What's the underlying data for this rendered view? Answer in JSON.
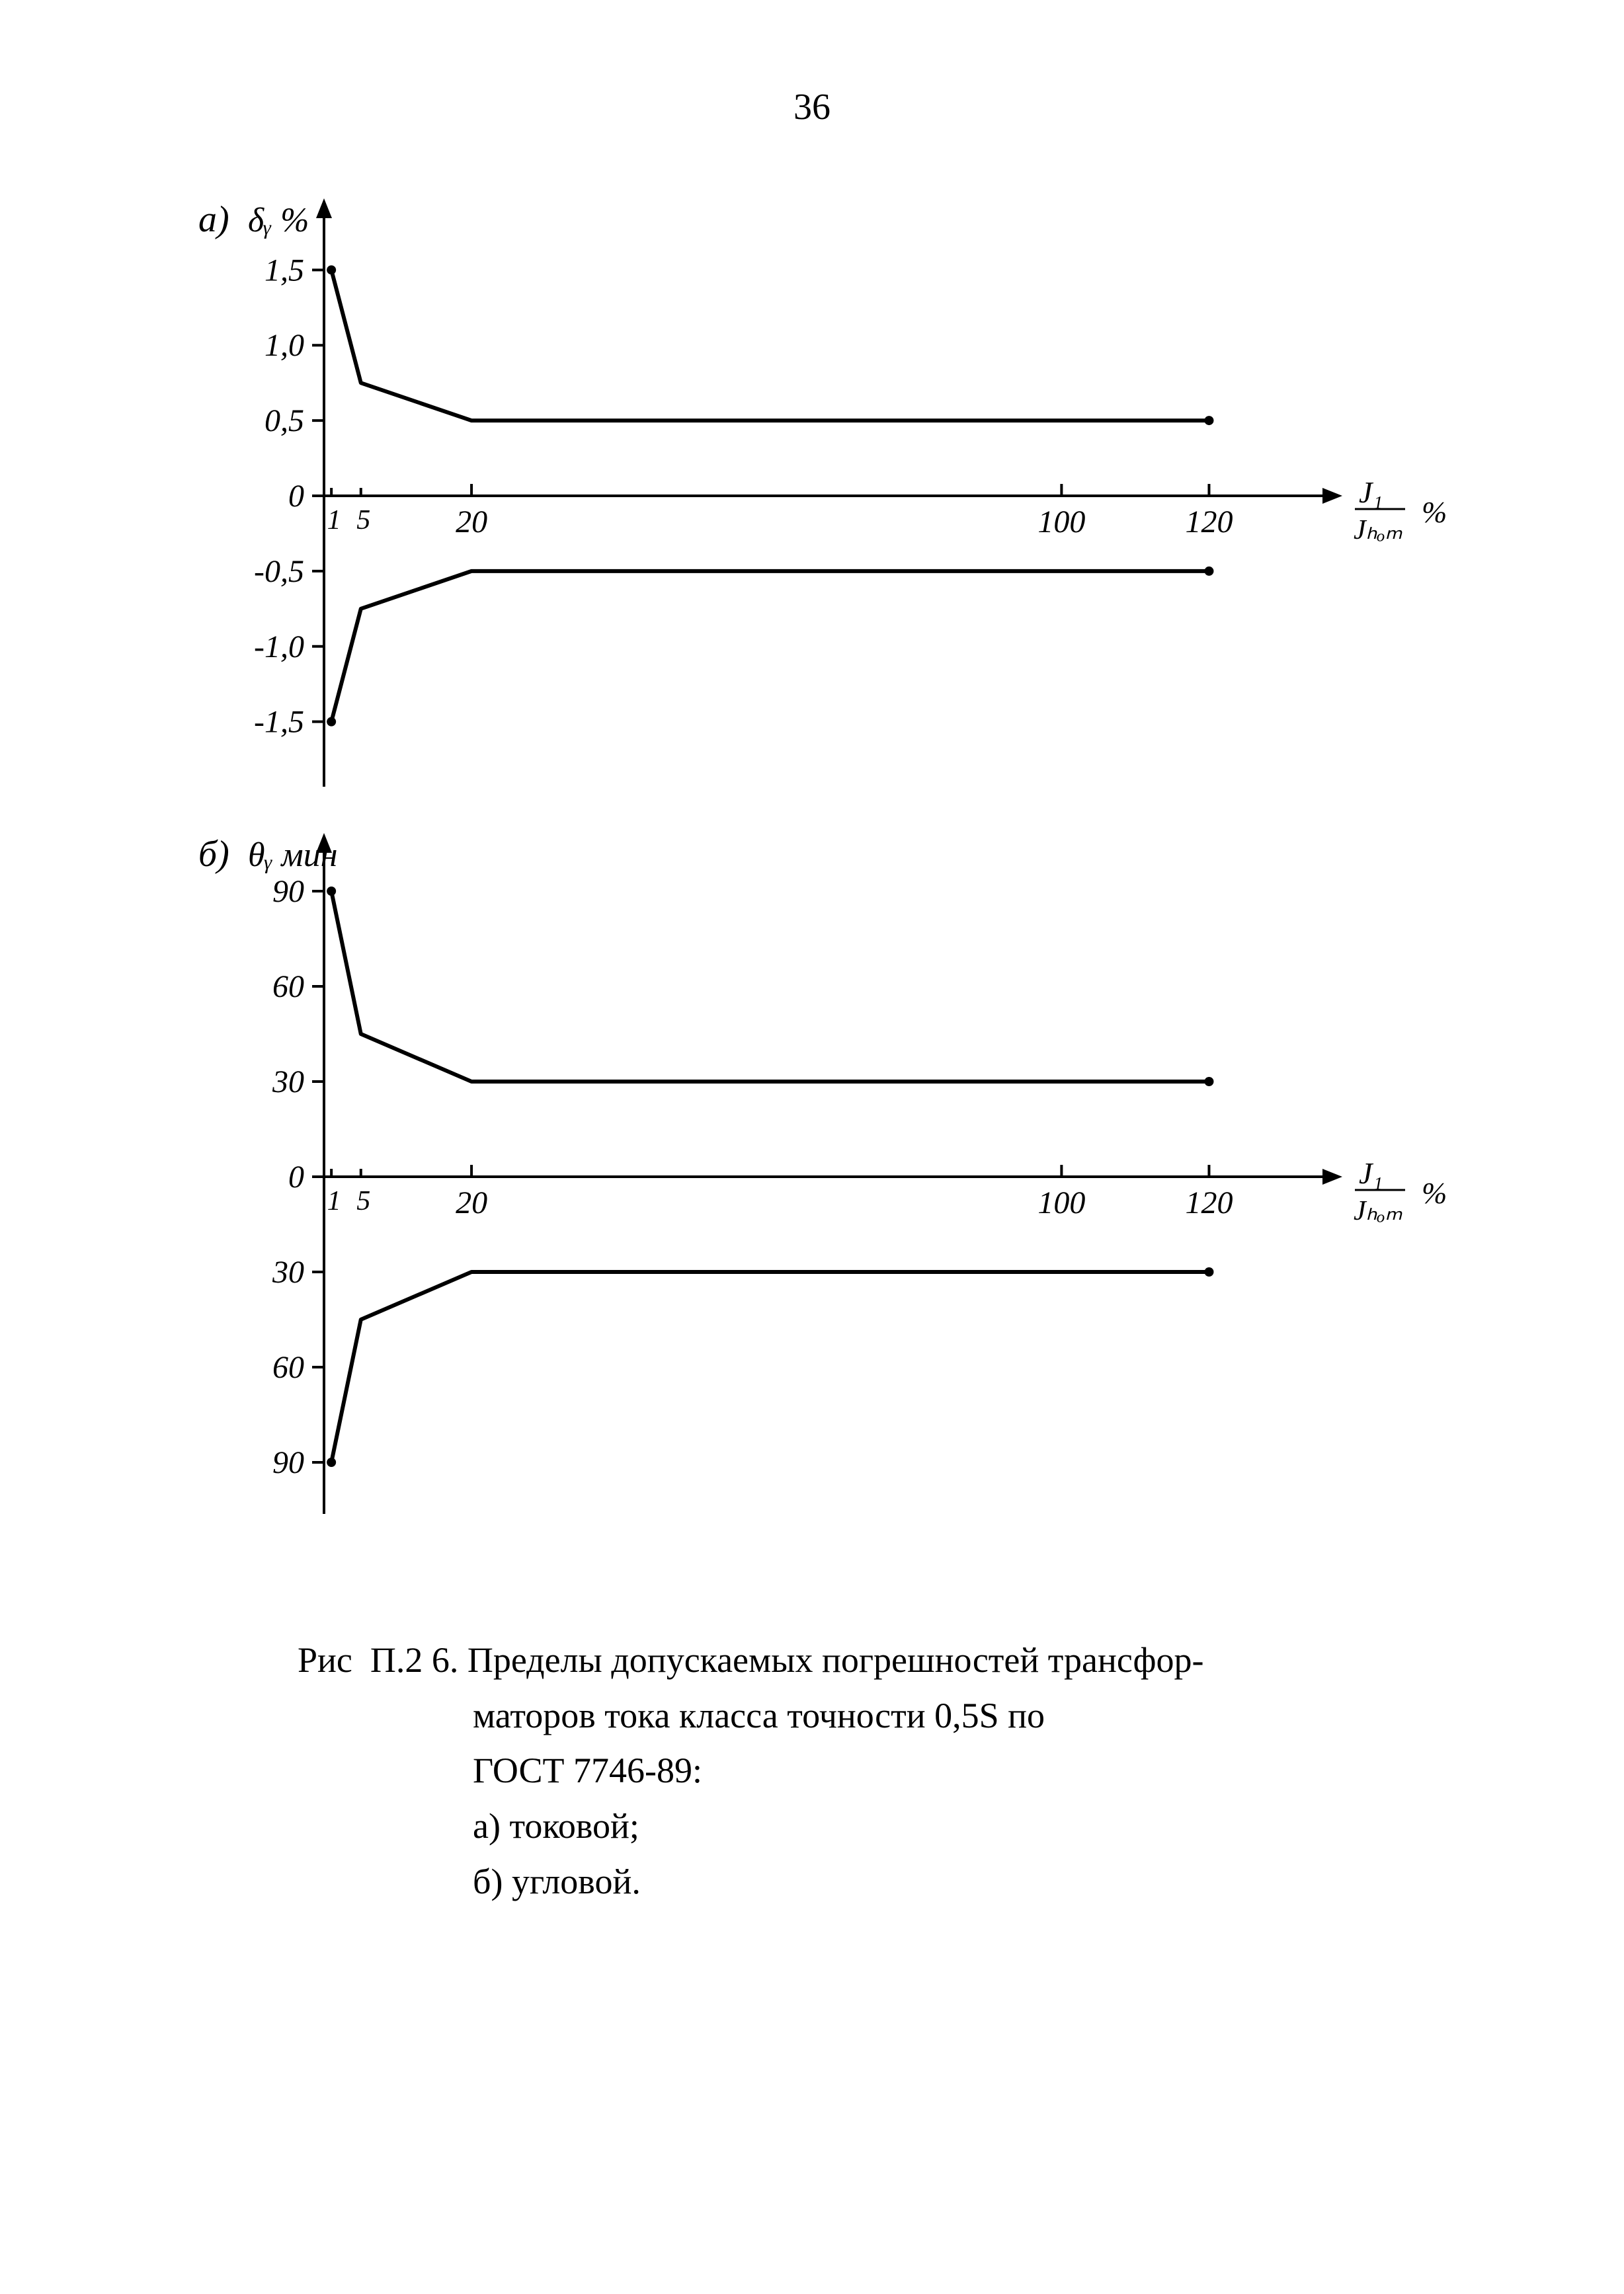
{
  "page_number": "36",
  "global": {
    "line_color": "#000000",
    "axis_color": "#000000",
    "background_color": "#ffffff",
    "font_family": "Times New Roman",
    "stroke_width_axis": 4,
    "stroke_width_data": 6,
    "tick_length": 18,
    "marker_radius": 7
  },
  "chart_a": {
    "type": "line-envelope",
    "panel_label": "а)",
    "y_axis_label": "δᵧ %",
    "x_axis_label_main": "J₁",
    "x_axis_label_sub": "Jₕₒₘ",
    "x_axis_unit": "%",
    "x_range": [
      0,
      130
    ],
    "y_range": [
      -1.8,
      1.8
    ],
    "y_ticks": [
      {
        "v": 1.5,
        "label": "1,5"
      },
      {
        "v": 1.0,
        "label": "1,0"
      },
      {
        "v": 0.5,
        "label": "0,5"
      },
      {
        "v": 0.0,
        "label": "0"
      },
      {
        "v": -0.5,
        "label": "-0,5"
      },
      {
        "v": -1.0,
        "label": "-1,0"
      },
      {
        "v": -1.5,
        "label": "-1,5"
      }
    ],
    "x_ticks_top": [
      {
        "v": 20,
        "label": "20"
      },
      {
        "v": 100,
        "label": "100"
      },
      {
        "v": 120,
        "label": "120"
      }
    ],
    "x_minor_labels": [
      {
        "v": 1,
        "label": "1"
      },
      {
        "v": 5,
        "label": "5"
      }
    ],
    "upper_series": [
      {
        "x": 1,
        "y": 1.5
      },
      {
        "x": 5,
        "y": 0.75
      },
      {
        "x": 20,
        "y": 0.5
      },
      {
        "x": 100,
        "y": 0.5
      },
      {
        "x": 120,
        "y": 0.5
      }
    ],
    "lower_series": [
      {
        "x": 1,
        "y": -1.5
      },
      {
        "x": 5,
        "y": -0.75
      },
      {
        "x": 20,
        "y": -0.5
      },
      {
        "x": 100,
        "y": -0.5
      },
      {
        "x": 120,
        "y": -0.5
      }
    ],
    "marker_points": [
      {
        "x": 1,
        "y": 1.5
      },
      {
        "x": 120,
        "y": 0.5
      },
      {
        "x": 1,
        "y": -1.5
      },
      {
        "x": 120,
        "y": -0.5
      }
    ]
  },
  "chart_b": {
    "type": "line-envelope",
    "panel_label": "б)",
    "y_axis_label": "θᵧ мин",
    "x_axis_label_main": "J₁",
    "x_axis_label_sub": "Jₕₒₘ",
    "x_axis_unit": "%",
    "x_range": [
      0,
      130
    ],
    "y_range": [
      -100,
      100
    ],
    "y_ticks": [
      {
        "v": 90,
        "label": "90"
      },
      {
        "v": 60,
        "label": "60"
      },
      {
        "v": 30,
        "label": "30"
      },
      {
        "v": 0,
        "label": "0"
      },
      {
        "v": -30,
        "label": "30"
      },
      {
        "v": -60,
        "label": "60"
      },
      {
        "v": -90,
        "label": "90"
      }
    ],
    "x_ticks_top": [
      {
        "v": 20,
        "label": "20"
      },
      {
        "v": 100,
        "label": "100"
      },
      {
        "v": 120,
        "label": "120"
      }
    ],
    "x_minor_labels": [
      {
        "v": 1,
        "label": "1"
      },
      {
        "v": 5,
        "label": "5"
      }
    ],
    "upper_series": [
      {
        "x": 1,
        "y": 90
      },
      {
        "x": 5,
        "y": 45
      },
      {
        "x": 20,
        "y": 30
      },
      {
        "x": 100,
        "y": 30
      },
      {
        "x": 120,
        "y": 30
      }
    ],
    "lower_series": [
      {
        "x": 1,
        "y": -90
      },
      {
        "x": 5,
        "y": -45
      },
      {
        "x": 20,
        "y": -30
      },
      {
        "x": 100,
        "y": -30
      },
      {
        "x": 120,
        "y": -30
      }
    ],
    "marker_points": [
      {
        "x": 1,
        "y": 90
      },
      {
        "x": 120,
        "y": 30
      },
      {
        "x": 1,
        "y": -90
      },
      {
        "x": 120,
        "y": -30
      }
    ]
  },
  "caption": {
    "prefix": "Рис  П.2 6. ",
    "line1": "Пределы допускаемых погрешностей трансфор-",
    "line2": "маторов тока класса точности 0,5S по",
    "line3": "ГОСТ 7746-89:",
    "item_a": "а) токовой;",
    "item_b": "б) угловой."
  }
}
